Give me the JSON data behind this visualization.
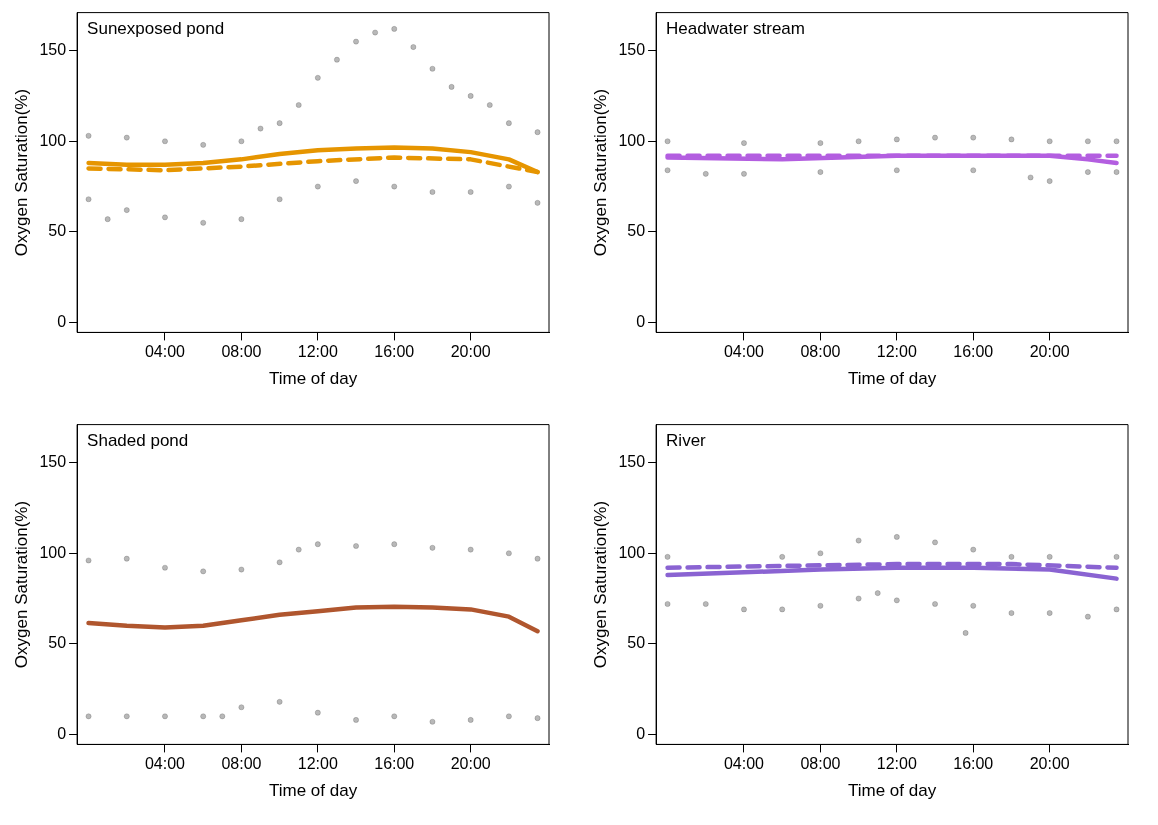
{
  "chart_data": [
    {
      "type": "scatter",
      "title": "Sunexposed pond",
      "xlabel": "Time of day",
      "ylabel": "Oxygen Saturation(%)",
      "xlim": [
        -0.6,
        24.1
      ],
      "ylim": [
        -5.5,
        171
      ],
      "xticks": [
        {
          "value": 4,
          "label": "04:00"
        },
        {
          "value": 8,
          "label": "08:00"
        },
        {
          "value": 12,
          "label": "12:00"
        },
        {
          "value": 16,
          "label": "16:00"
        },
        {
          "value": 20,
          "label": "20:00"
        }
      ],
      "yticks": [
        0,
        50,
        100,
        150
      ],
      "grid": false,
      "legend": false,
      "series": [
        {
          "type": "scatter",
          "marker": "circle",
          "color": "#000000",
          "x": [
            0,
            2,
            4,
            6,
            8,
            9,
            10,
            11,
            12,
            13,
            14,
            15,
            16,
            17,
            18,
            19,
            20,
            21,
            22,
            23.5,
            0,
            1,
            2,
            4,
            6,
            8,
            10,
            12,
            14,
            16,
            18,
            20,
            22,
            23.5
          ],
          "values": [
            103,
            102,
            100,
            98,
            100,
            107,
            110,
            120,
            135,
            145,
            155,
            160,
            162,
            152,
            140,
            130,
            125,
            120,
            110,
            105,
            68,
            57,
            62,
            58,
            55,
            57,
            68,
            75,
            78,
            75,
            72,
            72,
            75,
            66
          ]
        },
        {
          "type": "line",
          "marker": "none",
          "line_style": "solid",
          "color": "#e69500",
          "x": [
            0,
            2,
            4,
            6,
            8,
            10,
            12,
            14,
            16,
            18,
            20,
            22,
            23.5
          ],
          "values": [
            88,
            87,
            87,
            88,
            90,
            93,
            95,
            96,
            96.5,
            96,
            94,
            90,
            83
          ]
        },
        {
          "type": "line",
          "marker": "none",
          "line_style": "dashed",
          "color": "#e69500",
          "x": [
            0,
            4,
            8,
            12,
            16,
            20,
            23.5
          ],
          "values": [
            85,
            84,
            86,
            89,
            91,
            90,
            83
          ]
        }
      ]
    },
    {
      "type": "scatter",
      "title": "Headwater stream",
      "xlabel": "Time of day",
      "ylabel": "Oxygen Saturation(%)",
      "xlim": [
        -0.6,
        24.1
      ],
      "ylim": [
        -5.5,
        171
      ],
      "xticks": [
        {
          "value": 4,
          "label": "04:00"
        },
        {
          "value": 8,
          "label": "08:00"
        },
        {
          "value": 12,
          "label": "12:00"
        },
        {
          "value": 16,
          "label": "16:00"
        },
        {
          "value": 20,
          "label": "20:00"
        }
      ],
      "yticks": [
        0,
        50,
        100,
        150
      ],
      "grid": false,
      "legend": false,
      "series": [
        {
          "type": "scatter",
          "marker": "circle",
          "color": "#000000",
          "x": [
            0,
            4,
            8,
            10,
            12,
            14,
            16,
            18,
            20,
            22,
            23.5,
            0,
            2,
            4,
            8,
            12,
            16,
            19,
            20,
            22,
            23.5
          ],
          "values": [
            100,
            99,
            99,
            100,
            101,
            102,
            102,
            101,
            100,
            100,
            100,
            84,
            82,
            82,
            83,
            84,
            84,
            80,
            78,
            83,
            83
          ]
        },
        {
          "type": "line",
          "marker": "none",
          "line_style": "solid",
          "color": "#b35ee0",
          "x": [
            0,
            6,
            12,
            16,
            20,
            22,
            23.5
          ],
          "values": [
            91,
            90,
            92,
            92,
            92,
            90,
            88
          ]
        },
        {
          "type": "line",
          "marker": "none",
          "line_style": "dashed",
          "color": "#b35ee0",
          "x": [
            0,
            8,
            16,
            23.5
          ],
          "values": [
            92,
            92,
            92,
            92
          ]
        }
      ]
    },
    {
      "type": "scatter",
      "title": "Shaded pond",
      "xlabel": "Time of day",
      "ylabel": "Oxygen Saturation(%)",
      "xlim": [
        -0.6,
        24.1
      ],
      "ylim": [
        -5.5,
        171
      ],
      "xticks": [
        {
          "value": 4,
          "label": "04:00"
        },
        {
          "value": 8,
          "label": "08:00"
        },
        {
          "value": 12,
          "label": "12:00"
        },
        {
          "value": 16,
          "label": "16:00"
        },
        {
          "value": 20,
          "label": "20:00"
        }
      ],
      "yticks": [
        0,
        50,
        100,
        150
      ],
      "grid": false,
      "legend": false,
      "series": [
        {
          "type": "scatter",
          "marker": "circle",
          "color": "#000000",
          "x": [
            0,
            2,
            4,
            6,
            8,
            10,
            11,
            12,
            14,
            16,
            18,
            20,
            22,
            23.5,
            0,
            2,
            4,
            6,
            7,
            8,
            10,
            12,
            14,
            16,
            18,
            20,
            22,
            23.5
          ],
          "values": [
            96,
            97,
            92,
            90,
            91,
            95,
            102,
            105,
            104,
            105,
            103,
            102,
            100,
            97,
            10,
            10,
            10,
            10,
            10,
            15,
            18,
            12,
            8,
            10,
            7,
            8,
            10,
            9
          ]
        },
        {
          "type": "line",
          "marker": "none",
          "line_style": "solid",
          "color": "#b0562e",
          "x": [
            0,
            2,
            4,
            6,
            8,
            10,
            12,
            14,
            16,
            18,
            20,
            22,
            23.5
          ],
          "values": [
            61.5,
            60,
            59,
            60,
            63,
            66,
            68,
            70,
            70.5,
            70,
            69,
            65,
            57
          ]
        }
      ]
    },
    {
      "type": "scatter",
      "title": "River",
      "xlabel": "Time of day",
      "ylabel": "Oxygen Saturation(%)",
      "xlim": [
        -0.6,
        24.1
      ],
      "ylim": [
        -5.5,
        171
      ],
      "xticks": [
        {
          "value": 4,
          "label": "04:00"
        },
        {
          "value": 8,
          "label": "08:00"
        },
        {
          "value": 12,
          "label": "12:00"
        },
        {
          "value": 16,
          "label": "16:00"
        },
        {
          "value": 20,
          "label": "20:00"
        }
      ],
      "yticks": [
        0,
        50,
        100,
        150
      ],
      "grid": false,
      "legend": false,
      "series": [
        {
          "type": "scatter",
          "marker": "circle",
          "color": "#000000",
          "x": [
            0,
            6,
            8,
            10,
            12,
            14,
            16,
            18,
            20,
            23.5,
            0,
            2,
            4,
            6,
            8,
            10,
            11,
            12,
            14,
            16,
            18,
            20,
            22,
            23.5,
            15.6
          ],
          "values": [
            98,
            98,
            100,
            107,
            109,
            106,
            102,
            98,
            98,
            98,
            72,
            72,
            69,
            69,
            71,
            75,
            78,
            74,
            72,
            71,
            67,
            67,
            65,
            69,
            56
          ]
        },
        {
          "type": "line",
          "marker": "none",
          "line_style": "solid",
          "color": "#8a63d2",
          "x": [
            0,
            4,
            8,
            12,
            16,
            20,
            23.5
          ],
          "values": [
            88,
            89.5,
            91,
            92,
            92,
            91,
            86
          ]
        },
        {
          "type": "line",
          "marker": "none",
          "line_style": "dashed",
          "color": "#8a63d2",
          "x": [
            0,
            6,
            12,
            18,
            23.5
          ],
          "values": [
            92,
            93,
            94,
            94,
            92
          ]
        }
      ]
    }
  ]
}
